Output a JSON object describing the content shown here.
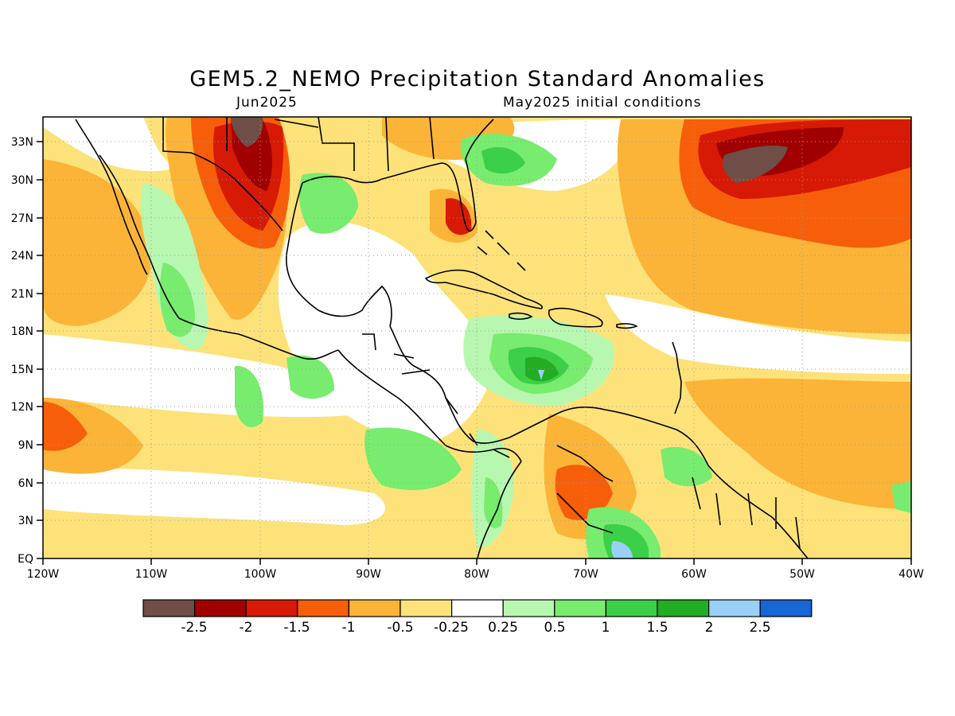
{
  "title": "GEM5.2_NEMO Precipitation Standard Anomalies",
  "subtitle_left": "Jun2025",
  "subtitle_right": "May2025 initial conditions",
  "map": {
    "lon_range": [
      -120,
      -40
    ],
    "lat_range": [
      0,
      35
    ],
    "lon_ticks": [
      "120W",
      "110W",
      "100W",
      "90W",
      "80W",
      "70W",
      "60W",
      "50W",
      "40W"
    ],
    "lat_ticks": [
      "EQ",
      "3N",
      "6N",
      "9N",
      "12N",
      "15N",
      "18N",
      "21N",
      "24N",
      "27N",
      "30N",
      "33N"
    ],
    "grid": "dotted"
  },
  "colorbar": {
    "colors": [
      "#6e4e47",
      "#a10000",
      "#d61a05",
      "#f75e0a",
      "#fbb438",
      "#fde27a",
      "#ffffff",
      "#b8f7b0",
      "#78ec6e",
      "#3ccf48",
      "#22ad22",
      "#9ad0f7",
      "#1666d6"
    ],
    "labels": [
      "-2.5",
      "-2",
      "-1.5",
      "-1",
      "-0.5",
      "-0.25",
      "0.25",
      "0.5",
      "1",
      "1.5",
      "2",
      "2.5"
    ]
  }
}
